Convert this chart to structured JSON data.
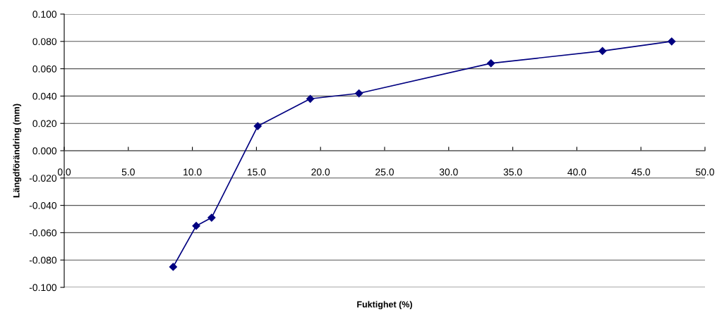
{
  "chart_data": {
    "type": "line",
    "xlabel": "Fuktighet (%)",
    "ylabel": "Längdförändring (mm)",
    "x": [
      8.5,
      10.3,
      11.5,
      15.1,
      19.2,
      23.0,
      33.3,
      42.0,
      47.4
    ],
    "series": [
      {
        "color": "#000080",
        "values": [
          -0.085,
          -0.055,
          -0.049,
          0.018,
          0.038,
          0.042,
          0.064,
          0.073,
          0.08
        ]
      }
    ],
    "xlim": [
      0,
      50
    ],
    "xticks": [
      {
        "value": 0,
        "label": "0.0"
      },
      {
        "value": 5,
        "label": "5.0"
      },
      {
        "value": 10,
        "label": "10.0"
      },
      {
        "value": 15,
        "label": "15.0"
      },
      {
        "value": 20,
        "label": "20.0"
      },
      {
        "value": 25,
        "label": "25.0"
      },
      {
        "value": 30,
        "label": "30.0"
      },
      {
        "value": 35,
        "label": "35.0"
      },
      {
        "value": 40,
        "label": "40.0"
      },
      {
        "value": 45,
        "label": "45.0"
      },
      {
        "value": 50,
        "label": "50.0"
      }
    ],
    "ylim": [
      -0.1,
      0.1
    ],
    "yticks": [
      {
        "value": -0.1,
        "label": "-0.100"
      },
      {
        "value": -0.08,
        "label": "-0.080"
      },
      {
        "value": -0.06,
        "label": "-0.060"
      },
      {
        "value": -0.04,
        "label": "-0.040"
      },
      {
        "value": -0.02,
        "label": "-0.020"
      },
      {
        "value": 0,
        "label": "0.000"
      },
      {
        "value": 0.02,
        "label": "0.020"
      },
      {
        "value": 0.04,
        "label": "0.040"
      },
      {
        "value": 0.06,
        "label": "0.060"
      },
      {
        "value": 0.08,
        "label": "0.080"
      },
      {
        "value": 0.1,
        "label": "0.100"
      }
    ],
    "grid": "y",
    "marker": "diamond",
    "line_style": "solid"
  }
}
